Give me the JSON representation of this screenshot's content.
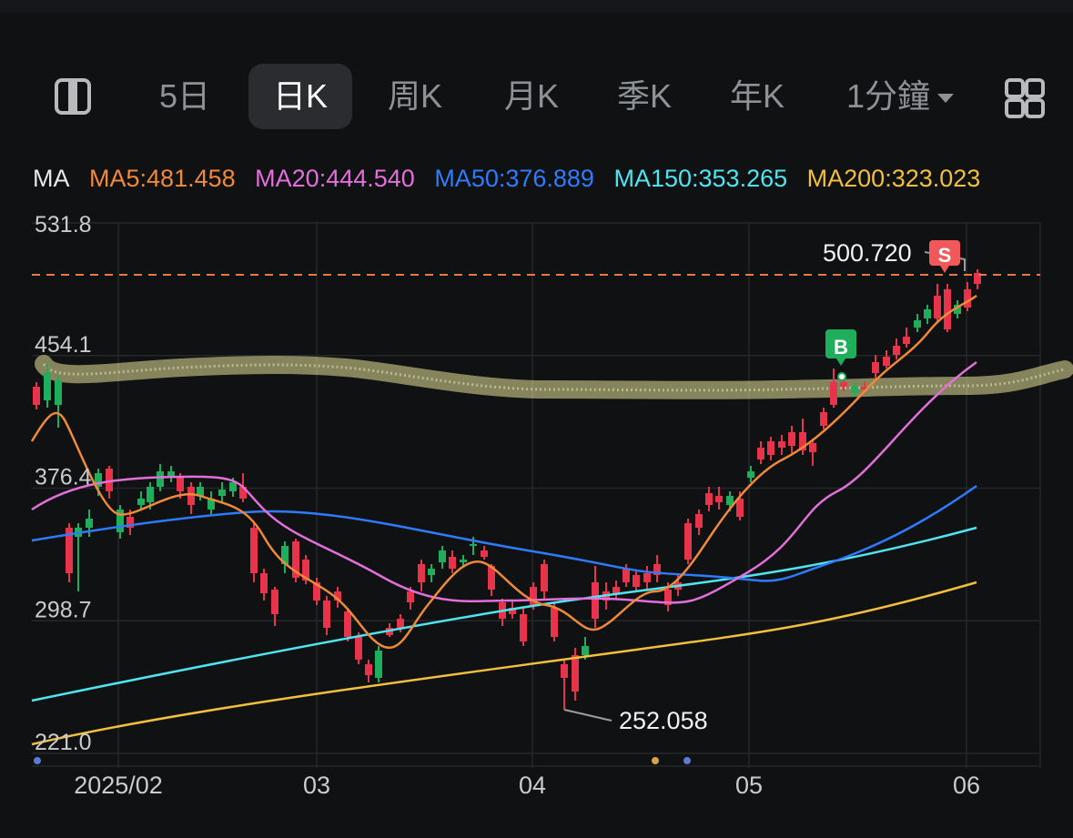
{
  "tabs": [
    {
      "id": "layout",
      "label": ""
    },
    {
      "id": "5d",
      "label": "5日"
    },
    {
      "id": "day",
      "label": "日K",
      "active": true
    },
    {
      "id": "week",
      "label": "周K"
    },
    {
      "id": "month",
      "label": "月K"
    },
    {
      "id": "quarter",
      "label": "季K"
    },
    {
      "id": "year",
      "label": "年K"
    },
    {
      "id": "minute",
      "label": "1分鐘"
    }
  ],
  "icons": {
    "layout": "panel-layout-icon",
    "more": "grid-icon",
    "dropdown": "chevron-down-icon"
  },
  "ma_header": {
    "label": "MA",
    "items": [
      {
        "text": "MA5:481.458",
        "color": "#f0893a"
      },
      {
        "text": "MA20:444.540",
        "color": "#e36fdb"
      },
      {
        "text": "MA50:376.889",
        "color": "#2f7bff"
      },
      {
        "text": "MA150:353.265",
        "color": "#4fe5f0"
      },
      {
        "text": "MA200:323.023",
        "color": "#f2bf3f"
      }
    ]
  },
  "y_axis_labels": [
    "531.8",
    "454.1",
    "376.4",
    "298.7",
    "221.0"
  ],
  "x_axis_labels": [
    "2025/02",
    "03",
    "04",
    "05",
    "06"
  ],
  "annotations": {
    "high_label": "500.720",
    "low_label": "252.058",
    "buy_marker": "B",
    "sell_marker": "S",
    "current_price_line": 500.72
  },
  "colors": {
    "up": "#1fae5c",
    "down": "#e8344a",
    "ref_line": "#f0783a",
    "highlight": "#e6e39a"
  },
  "chart_data": {
    "type": "candlestick",
    "ylim": [
      221.0,
      531.8
    ],
    "y_ticks": [
      531.8,
      454.1,
      376.4,
      298.7,
      221.0
    ],
    "x_ticks": [
      "2025/02",
      "03",
      "04",
      "05",
      "06"
    ],
    "high": 500.72,
    "low": 252.058,
    "last_close": 495.0
  }
}
